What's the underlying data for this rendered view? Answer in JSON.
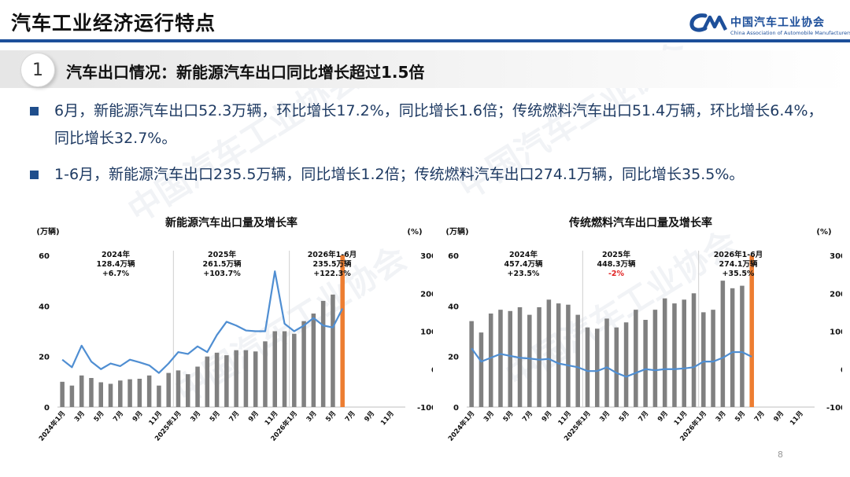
{
  "header": {
    "page_title": "汽车工业经济运行特点",
    "logo_cn": "中国汽车工业协会",
    "logo_en": "China Association of Automobile Manufacturers"
  },
  "section": {
    "number": "1",
    "heading": "汽车出口情况：新能源汽车出口同比增长超过1.5倍"
  },
  "bullets": [
    "6月，新能源汽车出口52.3万辆，环比增长17.2%，同比增长1.6倍；传统燃料汽车出口51.4万辆，环比增长6.4%，同比增长32.7%。",
    "1-6月，新能源汽车出口235.5万辆，同比增长1.2倍；传统燃料汽车出口274.1万辆，同比增长35.5%。"
  ],
  "page_number": "8",
  "watermark_text": "中国汽车工业协会",
  "chart_data": [
    {
      "type": "bar",
      "title": "新能源汽车出口量及增长率",
      "y_left_unit": "(万辆)",
      "y_right_unit": "(%)",
      "ylim_left": [
        0,
        60
      ],
      "yticks_left": [
        "0",
        "20",
        "40",
        "60"
      ],
      "ylim_right": [
        -100,
        300
      ],
      "yticks_right": [
        "-100",
        "0",
        "100",
        "200",
        "300"
      ],
      "x_tick_labels": [
        "2024年1月",
        "3月",
        "5月",
        "7月",
        "9月",
        "11月",
        "2025年1月",
        "3月",
        "5月",
        "7月",
        "9月",
        "11月",
        "2026年1月",
        "3月",
        "5月",
        "7月",
        "9月",
        "11月"
      ],
      "series": [
        {
          "kind": "bar",
          "values": [
            10,
            8.5,
            12.5,
            11.5,
            9.8,
            9.2,
            10.5,
            11,
            11.2,
            12.5,
            8.5,
            13.5,
            14.5,
            13,
            16,
            20,
            21.5,
            20.5,
            22.5,
            22.5,
            22,
            26,
            30,
            30,
            29,
            34,
            37,
            42,
            44.5,
            52.3
          ],
          "highlight_index": 29,
          "highlight_color": "#ed7d31",
          "color": "#808080"
        },
        {
          "kind": "line",
          "axis": "right",
          "values": [
            25,
            5,
            62,
            20,
            0,
            15,
            8,
            25,
            18,
            10,
            -10,
            15,
            45,
            40,
            60,
            45,
            90,
            125,
            115,
            102,
            100,
            100,
            258,
            120,
            100,
            115,
            135,
            115,
            110,
            160
          ],
          "color": "#4f8ed2"
        }
      ],
      "annotations": [
        {
          "text": "2024年\n128.4万辆\n+6.7%",
          "group": "2024"
        },
        {
          "text": "2025年\n261.5万辆\n+103.7%",
          "group": "2025"
        },
        {
          "text": "2026年1-6月\n235.5万辆\n+122.3%",
          "group": "2026"
        }
      ]
    },
    {
      "type": "bar",
      "title": "传统燃料汽车出口量及增长率",
      "y_left_unit": "(万辆)",
      "y_right_unit": "(%)",
      "ylim_left": [
        0,
        60
      ],
      "yticks_left": [
        "0",
        "20",
        "40",
        "60"
      ],
      "ylim_right": [
        -100,
        300
      ],
      "yticks_right": [
        "-100",
        "0",
        "100",
        "200",
        "300"
      ],
      "x_tick_labels": [
        "2024年1月",
        "3月",
        "5月",
        "7月",
        "9月",
        "11月",
        "2025年1月",
        "3月",
        "5月",
        "7月",
        "9月",
        "11月",
        "2026年1月",
        "3月",
        "5月",
        "7月",
        "9月",
        "11月"
      ],
      "series": [
        {
          "kind": "bar",
          "values": [
            34,
            29.5,
            37,
            38.5,
            38,
            39.5,
            36.5,
            39.5,
            42.5,
            41,
            40.5,
            36.5,
            31.5,
            31,
            35,
            31.5,
            33.5,
            38.5,
            34.5,
            38.5,
            43,
            41,
            42.5,
            45,
            37.5,
            38.5,
            50,
            47,
            48,
            51.4
          ],
          "highlight_index": 29,
          "highlight_color": "#ed7d31",
          "color": "#808080"
        },
        {
          "kind": "line",
          "axis": "right",
          "values": [
            55,
            20,
            30,
            40,
            35,
            30,
            28,
            25,
            27,
            15,
            10,
            5,
            -5,
            -5,
            5,
            -10,
            -20,
            -10,
            0,
            -3,
            0,
            0,
            2,
            5,
            20,
            20,
            30,
            45,
            45,
            32.7
          ],
          "color": "#4f8ed2"
        }
      ],
      "annotations": [
        {
          "text": "2024年\n457.4万辆\n+23.5%",
          "group": "2024",
          "color": "#111111"
        },
        {
          "text": "2025年\n448.3万辆\n-2%",
          "group": "2025",
          "color": "#e02020"
        },
        {
          "text": "2026年1-6月\n274.1万辆\n+35.5%",
          "group": "2026",
          "color": "#111111"
        }
      ]
    }
  ]
}
